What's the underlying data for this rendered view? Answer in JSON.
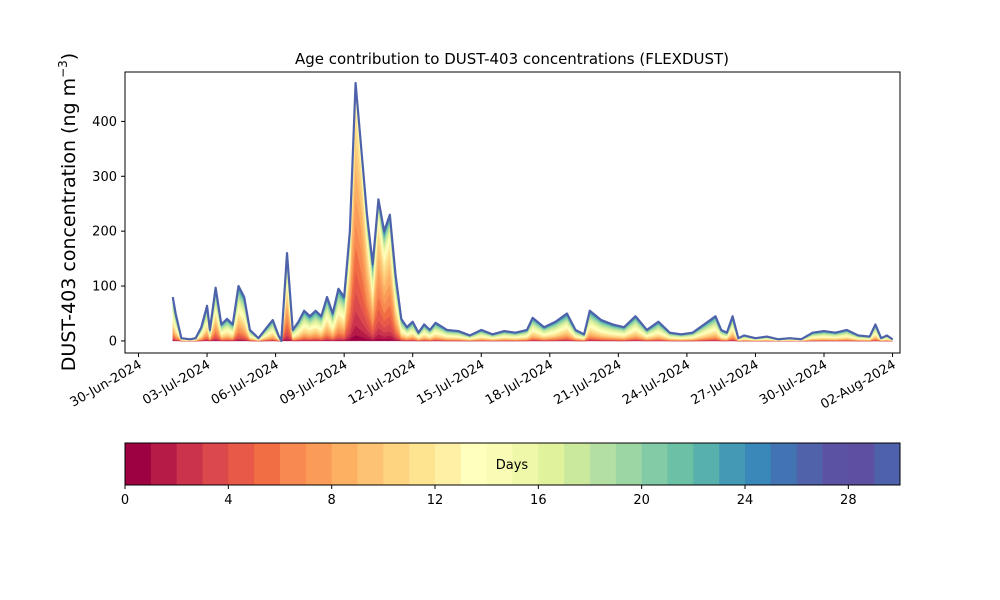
{
  "chart_data": {
    "type": "area",
    "title": "Age contribution to DUST-403 concentrations (FLEXDUST)",
    "ylabel": "DUST-403 concentration (ng m",
    "ylabel_sup": "−3",
    "ylabel_close": ")",
    "xlabel": "",
    "ylim": [
      -22,
      490
    ],
    "yticks": [
      0,
      100,
      200,
      300,
      400
    ],
    "x_start": "2024-06-29",
    "x_end": "2024-08-02",
    "xticks": [
      "30-Jun-2024",
      "03-Jul-2024",
      "06-Jul-2024",
      "09-Jul-2024",
      "12-Jul-2024",
      "15-Jul-2024",
      "18-Jul-2024",
      "21-Jul-2024",
      "24-Jul-2024",
      "27-Jul-2024",
      "30-Jul-2024",
      "02-Aug-2024"
    ],
    "total_series": {
      "name": "Total",
      "color": "#4e62ab",
      "points": [
        [
          "2024-07-01T12:00",
          80
        ],
        [
          "2024-07-01T15:00",
          50
        ],
        [
          "2024-07-01T21:00",
          5
        ],
        [
          "2024-07-02T06:00",
          3
        ],
        [
          "2024-07-02T12:00",
          5
        ],
        [
          "2024-07-02T18:00",
          25
        ],
        [
          "2024-07-03T00:00",
          64
        ],
        [
          "2024-07-03T03:00",
          20
        ],
        [
          "2024-07-03T09:00",
          97
        ],
        [
          "2024-07-03T15:00",
          30
        ],
        [
          "2024-07-03T21:00",
          40
        ],
        [
          "2024-07-04T03:00",
          30
        ],
        [
          "2024-07-04T09:00",
          100
        ],
        [
          "2024-07-04T15:00",
          80
        ],
        [
          "2024-07-04T21:00",
          20
        ],
        [
          "2024-07-05T06:00",
          5
        ],
        [
          "2024-07-05T15:00",
          25
        ],
        [
          "2024-07-05T21:00",
          38
        ],
        [
          "2024-07-06T03:00",
          10
        ],
        [
          "2024-07-06T06:00",
          0
        ],
        [
          "2024-07-06T12:00",
          160
        ],
        [
          "2024-07-06T18:00",
          20
        ],
        [
          "2024-07-07T00:00",
          35
        ],
        [
          "2024-07-07T06:00",
          55
        ],
        [
          "2024-07-07T12:00",
          45
        ],
        [
          "2024-07-07T18:00",
          55
        ],
        [
          "2024-07-08T00:00",
          45
        ],
        [
          "2024-07-08T06:00",
          80
        ],
        [
          "2024-07-08T12:00",
          50
        ],
        [
          "2024-07-08T18:00",
          95
        ],
        [
          "2024-07-09T00:00",
          80
        ],
        [
          "2024-07-09T06:00",
          200
        ],
        [
          "2024-07-09T12:00",
          470
        ],
        [
          "2024-07-09T18:00",
          350
        ],
        [
          "2024-07-10T00:00",
          230
        ],
        [
          "2024-07-10T06:00",
          140
        ],
        [
          "2024-07-10T12:00",
          258
        ],
        [
          "2024-07-10T18:00",
          200
        ],
        [
          "2024-07-11T00:00",
          230
        ],
        [
          "2024-07-11T06:00",
          120
        ],
        [
          "2024-07-11T12:00",
          40
        ],
        [
          "2024-07-11T18:00",
          25
        ],
        [
          "2024-07-12T00:00",
          35
        ],
        [
          "2024-07-12T06:00",
          15
        ],
        [
          "2024-07-12T12:00",
          30
        ],
        [
          "2024-07-12T18:00",
          20
        ],
        [
          "2024-07-13T00:00",
          33
        ],
        [
          "2024-07-13T12:00",
          20
        ],
        [
          "2024-07-14T00:00",
          18
        ],
        [
          "2024-07-14T12:00",
          10
        ],
        [
          "2024-07-15T00:00",
          20
        ],
        [
          "2024-07-15T12:00",
          12
        ],
        [
          "2024-07-16T00:00",
          18
        ],
        [
          "2024-07-16T12:00",
          15
        ],
        [
          "2024-07-17T00:00",
          20
        ],
        [
          "2024-07-17T06:00",
          42
        ],
        [
          "2024-07-17T18:00",
          25
        ],
        [
          "2024-07-18T06:00",
          35
        ],
        [
          "2024-07-18T18:00",
          50
        ],
        [
          "2024-07-19T03:00",
          20
        ],
        [
          "2024-07-19T12:00",
          12
        ],
        [
          "2024-07-19T18:00",
          55
        ],
        [
          "2024-07-20T06:00",
          38
        ],
        [
          "2024-07-20T18:00",
          30
        ],
        [
          "2024-07-21T06:00",
          25
        ],
        [
          "2024-07-21T18:00",
          45
        ],
        [
          "2024-07-22T06:00",
          20
        ],
        [
          "2024-07-22T18:00",
          35
        ],
        [
          "2024-07-23T06:00",
          15
        ],
        [
          "2024-07-23T18:00",
          12
        ],
        [
          "2024-07-24T06:00",
          15
        ],
        [
          "2024-07-24T18:00",
          30
        ],
        [
          "2024-07-25T06:00",
          45
        ],
        [
          "2024-07-25T12:00",
          20
        ],
        [
          "2024-07-25T18:00",
          15
        ],
        [
          "2024-07-26T00:00",
          45
        ],
        [
          "2024-07-26T06:00",
          5
        ],
        [
          "2024-07-26T12:00",
          10
        ],
        [
          "2024-07-27T00:00",
          5
        ],
        [
          "2024-07-27T12:00",
          8
        ],
        [
          "2024-07-28T00:00",
          3
        ],
        [
          "2024-07-28T12:00",
          5
        ],
        [
          "2024-07-29T00:00",
          3
        ],
        [
          "2024-07-29T12:00",
          15
        ],
        [
          "2024-07-30T00:00",
          18
        ],
        [
          "2024-07-30T12:00",
          15
        ],
        [
          "2024-07-31T00:00",
          20
        ],
        [
          "2024-07-31T12:00",
          10
        ],
        [
          "2024-08-01T00:00",
          8
        ],
        [
          "2024-08-01T06:00",
          30
        ],
        [
          "2024-08-01T12:00",
          5
        ],
        [
          "2024-08-01T18:00",
          10
        ],
        [
          "2024-08-02T00:00",
          3
        ]
      ]
    },
    "age_layers": {
      "bins": [
        0,
        1,
        2,
        3,
        4,
        5,
        6,
        7,
        8,
        9,
        10,
        11,
        12,
        13,
        14,
        15,
        16,
        17,
        18,
        19,
        20,
        21,
        22,
        23,
        24,
        25,
        26,
        27,
        28,
        29,
        30
      ],
      "colors": [
        "#9e0142",
        "#b61b48",
        "#cb334d",
        "#dc494c",
        "#e85a47",
        "#f16d43",
        "#f88950",
        "#fa9c58",
        "#fdaf62",
        "#fdc373",
        "#fed481",
        "#fee391",
        "#fff0a6",
        "#ffffbe",
        "#f8fcb4",
        "#eef8a8",
        "#e0f29c",
        "#cbe99d",
        "#b3e0a2",
        "#9bd6a4",
        "#82cba6",
        "#6bc1a5",
        "#57b0ab",
        "#449ab4",
        "#3a87b9",
        "#4274b3",
        "#5062aa",
        "#5c52a3",
        "#5e4fa2",
        "#4e62ab"
      ]
    },
    "colorbar": {
      "label": "Days",
      "ticks": [
        0,
        4,
        8,
        12,
        16,
        20,
        24,
        28
      ],
      "range": [
        0,
        30
      ]
    },
    "grid": false,
    "legend": "none"
  }
}
